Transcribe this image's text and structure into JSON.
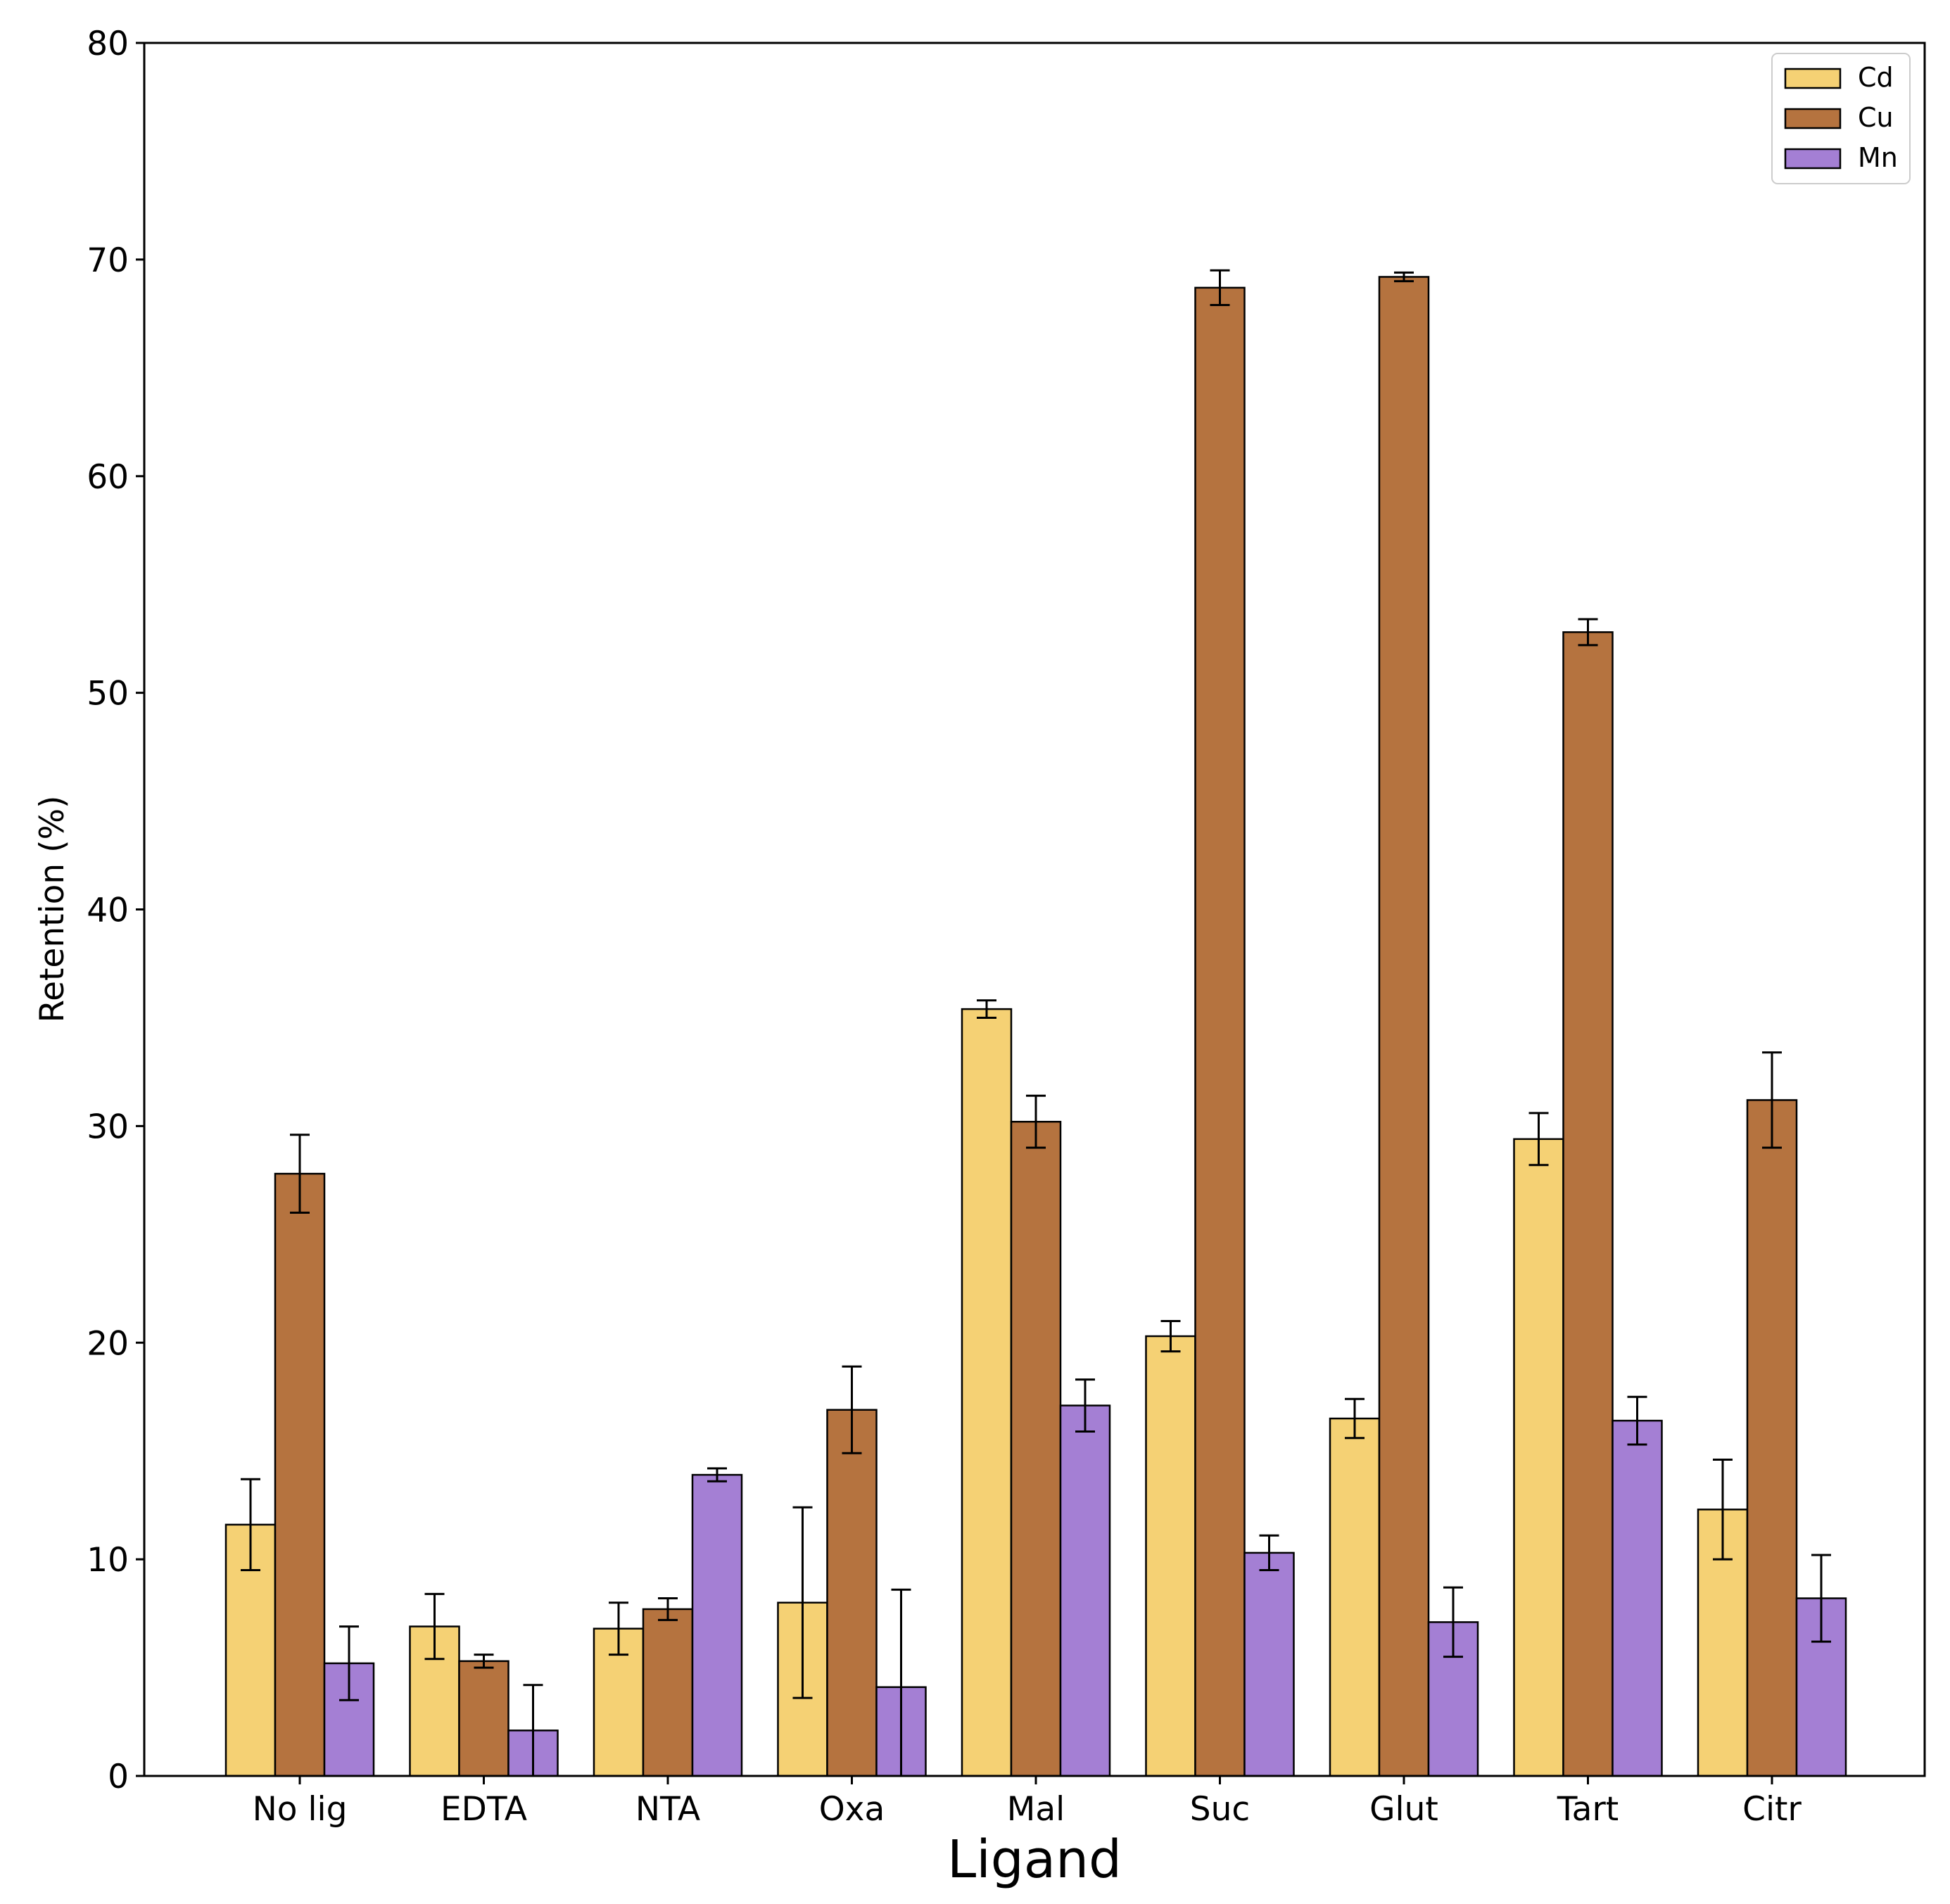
{
  "chart_data": {
    "type": "bar",
    "title": "",
    "xlabel": "Ligand",
    "ylabel": "Retention (%)",
    "ylim": [
      0,
      80
    ],
    "yticks": [
      0,
      10,
      20,
      30,
      40,
      50,
      60,
      70,
      80
    ],
    "categories": [
      "No lig",
      "EDTA",
      "NTA",
      "Oxa",
      "Mal",
      "Suc",
      "Glut",
      "Tart",
      "Citr"
    ],
    "legend_position": "top-right",
    "grid": false,
    "series": [
      {
        "name": "Cd",
        "color": "#F5D174",
        "values": [
          11.6,
          6.9,
          6.8,
          8.0,
          35.4,
          20.3,
          16.5,
          29.4,
          12.3
        ],
        "errors": [
          2.1,
          1.5,
          1.2,
          4.4,
          0.4,
          0.7,
          0.9,
          1.2,
          2.3
        ]
      },
      {
        "name": "Cu",
        "color": "#B5733F",
        "values": [
          27.8,
          5.3,
          7.7,
          16.9,
          30.2,
          68.7,
          69.2,
          52.8,
          31.2
        ],
        "errors": [
          1.8,
          0.3,
          0.5,
          2.0,
          1.2,
          0.8,
          0.2,
          0.6,
          2.2
        ]
      },
      {
        "name": "Mn",
        "color": "#A47FD4",
        "values": [
          5.2,
          2.1,
          13.9,
          4.1,
          17.1,
          10.3,
          7.1,
          16.4,
          8.2
        ],
        "errors": [
          1.7,
          2.1,
          0.3,
          4.5,
          1.2,
          0.8,
          1.6,
          1.1,
          2.0
        ]
      }
    ]
  }
}
